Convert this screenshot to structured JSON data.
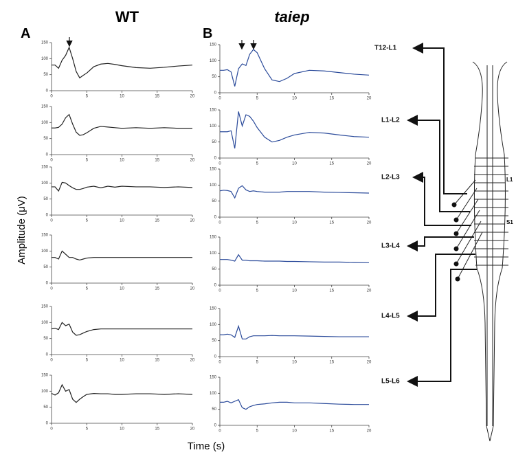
{
  "figure": {
    "panel_a": "A",
    "panel_b": "B",
    "title_a": "WT",
    "title_b": "taiep",
    "ylabel": "Amplitude (μV)",
    "xlabel": "Time (s)"
  },
  "diagram": {
    "levels": [
      "T12-L1",
      "L1-L2",
      "L2-L3",
      "L3-L4",
      "L4-L5",
      "L5-L6"
    ],
    "markers": [
      "L1",
      "S1"
    ]
  },
  "chart_data": [
    {
      "type": "line",
      "color": "#222222",
      "x": [
        0,
        0.5,
        1,
        1.5,
        2,
        2.5,
        3,
        3.5,
        4,
        4.5,
        5,
        6,
        7,
        8,
        9,
        10,
        12,
        14,
        16,
        18,
        20
      ],
      "values": [
        80,
        80,
        70,
        95,
        110,
        135,
        100,
        60,
        40,
        48,
        55,
        75,
        83,
        85,
        82,
        78,
        72,
        70,
        73,
        77,
        80
      ],
      "xlim": [
        0,
        20
      ],
      "ylim": [
        0,
        150
      ],
      "xticks": [
        0,
        5,
        10,
        15,
        20
      ],
      "yticks": [
        0,
        50,
        100,
        150
      ]
    },
    {
      "type": "line",
      "color": "#222222",
      "x": [
        0,
        0.5,
        1,
        1.5,
        2,
        2.5,
        3,
        3.5,
        4,
        4.5,
        5,
        6,
        7,
        8,
        9,
        10,
        12,
        14,
        16,
        18,
        20
      ],
      "values": [
        83,
        83,
        85,
        95,
        115,
        125,
        95,
        70,
        60,
        62,
        68,
        82,
        88,
        86,
        84,
        82,
        84,
        82,
        84,
        82,
        82
      ],
      "xlim": [
        0,
        20
      ],
      "ylim": [
        0,
        150
      ],
      "xticks": [
        0,
        5,
        10,
        15,
        20
      ],
      "yticks": [
        0,
        50,
        100,
        150
      ]
    },
    {
      "type": "line",
      "color": "#222222",
      "x": [
        0,
        0.5,
        1,
        1.5,
        2,
        2.5,
        3,
        3.5,
        4,
        4.5,
        5,
        6,
        7,
        8,
        9,
        10,
        12,
        14,
        16,
        18,
        20
      ],
      "values": [
        88,
        88,
        75,
        102,
        100,
        92,
        85,
        80,
        80,
        83,
        87,
        90,
        85,
        90,
        87,
        90,
        88,
        88,
        86,
        88,
        86
      ],
      "xlim": [
        0,
        20
      ],
      "ylim": [
        0,
        150
      ],
      "xticks": [
        0,
        5,
        10,
        15,
        20
      ],
      "yticks": [
        0,
        50,
        100,
        150
      ]
    },
    {
      "type": "line",
      "color": "#222222",
      "x": [
        0,
        0.5,
        1,
        1.5,
        2,
        2.5,
        3,
        3.5,
        4,
        4.5,
        5,
        6,
        7,
        8,
        9,
        10,
        12,
        14,
        16,
        18,
        20
      ],
      "values": [
        80,
        80,
        75,
        100,
        90,
        80,
        80,
        75,
        72,
        75,
        78,
        80,
        80,
        80,
        80,
        80,
        80,
        80,
        80,
        80,
        80
      ],
      "xlim": [
        0,
        20
      ],
      "ylim": [
        0,
        150
      ],
      "xticks": [
        0,
        5,
        10,
        15,
        20
      ],
      "yticks": [
        0,
        50,
        100,
        150
      ]
    },
    {
      "type": "line",
      "color": "#222222",
      "x": [
        0,
        0.5,
        1,
        1.5,
        2,
        2.5,
        3,
        3.5,
        4,
        4.5,
        5,
        6,
        7,
        8,
        9,
        10,
        12,
        14,
        16,
        18,
        20
      ],
      "values": [
        80,
        82,
        78,
        100,
        90,
        95,
        70,
        60,
        62,
        67,
        72,
        78,
        80,
        80,
        80,
        80,
        80,
        80,
        80,
        80,
        80
      ],
      "xlim": [
        0,
        20
      ],
      "ylim": [
        0,
        150
      ],
      "xticks": [
        0,
        5,
        10,
        15,
        20
      ],
      "yticks": [
        0,
        50,
        100,
        150
      ]
    },
    {
      "type": "line",
      "color": "#222222",
      "x": [
        0,
        0.5,
        1,
        1.5,
        2,
        2.5,
        3,
        3.5,
        4,
        4.5,
        5,
        6,
        7,
        8,
        9,
        10,
        12,
        14,
        16,
        18,
        20
      ],
      "values": [
        93,
        88,
        95,
        120,
        100,
        105,
        75,
        65,
        75,
        83,
        90,
        93,
        92,
        92,
        90,
        90,
        92,
        92,
        90,
        92,
        90
      ],
      "xlim": [
        0,
        20
      ],
      "ylim": [
        0,
        150
      ],
      "xticks": [
        0,
        5,
        10,
        15,
        20
      ],
      "yticks": [
        0,
        50,
        100,
        150
      ]
    },
    {
      "type": "line",
      "color": "#2a4a9a",
      "x": [
        0,
        0.5,
        1,
        1.5,
        2,
        2.5,
        3,
        3.5,
        4,
        4.5,
        5,
        6,
        7,
        8,
        9,
        10,
        12,
        14,
        16,
        18,
        20
      ],
      "values": [
        70,
        70,
        72,
        65,
        20,
        75,
        90,
        85,
        120,
        135,
        125,
        75,
        40,
        35,
        45,
        60,
        70,
        68,
        63,
        58,
        55
      ],
      "xlim": [
        0,
        20
      ],
      "ylim": [
        0,
        150
      ],
      "xticks": [
        0,
        5,
        10,
        15,
        20
      ],
      "yticks": [
        0,
        50,
        100,
        150
      ]
    },
    {
      "type": "line",
      "color": "#2a4a9a",
      "x": [
        0,
        0.5,
        1,
        1.5,
        2,
        2.5,
        3,
        3.5,
        4,
        4.5,
        5,
        6,
        7,
        8,
        9,
        10,
        12,
        14,
        16,
        18,
        20
      ],
      "values": [
        82,
        82,
        82,
        85,
        30,
        145,
        100,
        135,
        130,
        115,
        95,
        65,
        50,
        55,
        65,
        72,
        80,
        78,
        72,
        67,
        65
      ],
      "xlim": [
        0,
        20
      ],
      "ylim": [
        0,
        150
      ],
      "xticks": [
        0,
        5,
        10,
        15,
        20
      ],
      "yticks": [
        0,
        50,
        100,
        150
      ]
    },
    {
      "type": "line",
      "color": "#2a4a9a",
      "x": [
        0,
        0.5,
        1,
        1.5,
        2,
        2.5,
        3,
        3.5,
        4,
        4.5,
        5,
        6,
        7,
        8,
        9,
        10,
        12,
        14,
        16,
        18,
        20
      ],
      "values": [
        82,
        84,
        83,
        80,
        60,
        90,
        98,
        85,
        80,
        82,
        80,
        78,
        78,
        78,
        80,
        80,
        80,
        78,
        77,
        76,
        75
      ],
      "xlim": [
        0,
        20
      ],
      "ylim": [
        0,
        150
      ],
      "xticks": [
        0,
        5,
        10,
        15,
        20
      ],
      "yticks": [
        0,
        50,
        100,
        150
      ]
    },
    {
      "type": "line",
      "color": "#2a4a9a",
      "x": [
        0,
        0.5,
        1,
        1.5,
        2,
        2.5,
        3,
        3.5,
        4,
        4.5,
        5,
        6,
        7,
        8,
        9,
        10,
        12,
        14,
        16,
        18,
        20
      ],
      "values": [
        80,
        80,
        80,
        78,
        75,
        95,
        78,
        78,
        76,
        76,
        76,
        75,
        75,
        75,
        74,
        74,
        73,
        72,
        72,
        71,
        70
      ],
      "xlim": [
        0,
        20
      ],
      "ylim": [
        0,
        150
      ],
      "xticks": [
        0,
        5,
        10,
        15,
        20
      ],
      "yticks": [
        0,
        50,
        100,
        150
      ]
    },
    {
      "type": "line",
      "color": "#2a4a9a",
      "x": [
        0,
        0.5,
        1,
        1.5,
        2,
        2.5,
        3,
        3.5,
        4,
        4.5,
        5,
        6,
        7,
        8,
        9,
        10,
        12,
        14,
        16,
        18,
        20
      ],
      "values": [
        68,
        68,
        70,
        68,
        60,
        95,
        55,
        55,
        62,
        65,
        65,
        65,
        66,
        65,
        65,
        65,
        64,
        63,
        62,
        62,
        62
      ],
      "xlim": [
        0,
        20
      ],
      "ylim": [
        0,
        150
      ],
      "xticks": [
        0,
        5,
        10,
        15,
        20
      ],
      "yticks": [
        0,
        50,
        100,
        150
      ]
    },
    {
      "type": "line",
      "color": "#2a4a9a",
      "x": [
        0,
        0.5,
        1,
        1.5,
        2,
        2.5,
        3,
        3.5,
        4,
        4.5,
        5,
        6,
        7,
        8,
        9,
        10,
        12,
        14,
        16,
        18,
        20
      ],
      "values": [
        72,
        72,
        75,
        70,
        75,
        80,
        55,
        50,
        58,
        62,
        65,
        67,
        70,
        72,
        72,
        70,
        70,
        68,
        66,
        65,
        65
      ],
      "xlim": [
        0,
        20
      ],
      "ylim": [
        0,
        150
      ],
      "xticks": [
        0,
        5,
        10,
        15,
        20
      ],
      "yticks": [
        0,
        50,
        100,
        150
      ]
    }
  ]
}
